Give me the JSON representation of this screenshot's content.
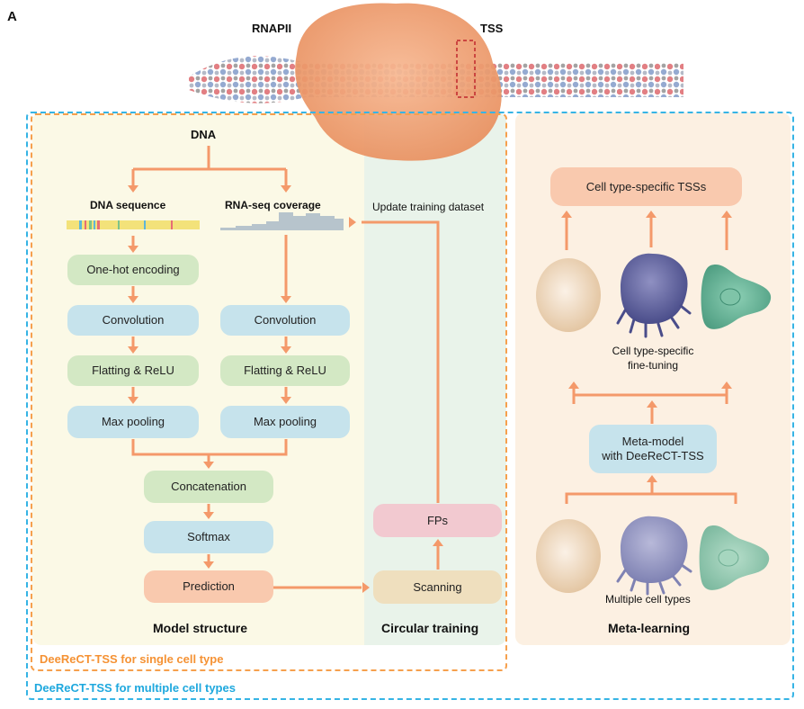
{
  "panel_letter": "A",
  "top": {
    "rnapii_label": "RNAPII",
    "tss_label": "TSS"
  },
  "model": {
    "dna": "DNA",
    "seq_title": "DNA sequence",
    "cov_title": "RNA-seq coverage",
    "one_hot": "One-hot encoding",
    "conv": "Convolution",
    "flat": "Flatting & ReLU",
    "maxpool": "Max pooling",
    "concat": "Concatenation",
    "softmax": "Softmax",
    "prediction": "Prediction",
    "section_title": "Model structure"
  },
  "circular": {
    "update": "Update training dataset",
    "fps": "FPs",
    "scanning": "Scanning",
    "section_title": "Circular training"
  },
  "meta": {
    "tss_box": "Cell type-specific TSSs",
    "finetune_line1": "Cell type-specific",
    "finetune_line2": "fine-tuning",
    "metamodel_line1": "Meta-model",
    "metamodel_line2": "with DeeReCT-TSS",
    "multiple": "Multiple cell types",
    "section_title": "Meta-learning"
  },
  "legend": {
    "single": "DeeReCT-TSS for single cell type",
    "multiple": "DeeReCT-TSS for multiple cell types"
  },
  "colors": {
    "arrow": "#f4996a",
    "frame_single": "#f6a04d",
    "frame_multiple": "#36b4e5"
  }
}
